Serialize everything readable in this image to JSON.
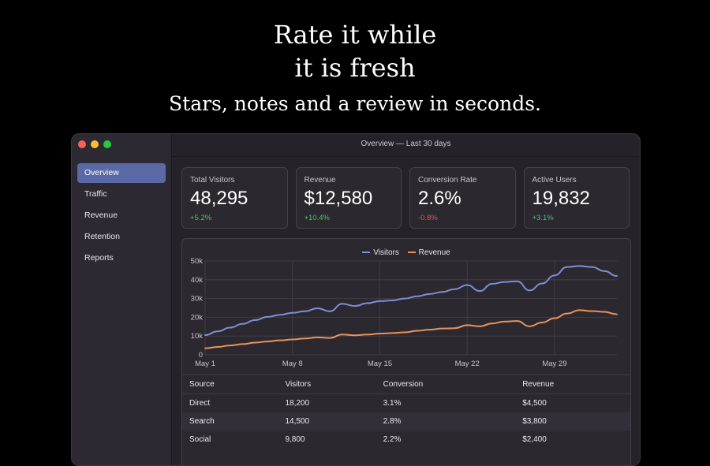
{
  "headline": {
    "line1": "Rate it while",
    "line2": "it is fresh",
    "subtitle": "Stars, notes and a review in seconds."
  },
  "window": {
    "title": "Overview — Last 30 days",
    "traffic_lights": [
      "#ff5f57",
      "#febc2e",
      "#28c840"
    ]
  },
  "sidebar": {
    "items": [
      {
        "label": "Overview",
        "active": true
      },
      {
        "label": "Traffic",
        "active": false
      },
      {
        "label": "Revenue",
        "active": false
      },
      {
        "label": "Retention",
        "active": false
      },
      {
        "label": "Reports",
        "active": false
      }
    ]
  },
  "stats": [
    {
      "label": "Total Visitors",
      "value": "48,295",
      "delta": "+5.2%",
      "trend": "up"
    },
    {
      "label": "Revenue",
      "value": "$12,580",
      "delta": "+10.4%",
      "trend": "up"
    },
    {
      "label": "Conversion Rate",
      "value": "2.6%",
      "delta": "-0.8%",
      "trend": "down"
    },
    {
      "label": "Active Users",
      "value": "19,832",
      "delta": "+3.1%",
      "trend": "up"
    }
  ],
  "colors": {
    "accent": "#5b6aa6",
    "positive": "#4cc36a",
    "negative": "#e0554f",
    "visitors": "#7b8fd4",
    "revenue": "#e8935a"
  },
  "chart_data": {
    "type": "line",
    "x": [
      "May 1",
      "May 2",
      "May 3",
      "May 4",
      "May 5",
      "May 6",
      "May 7",
      "May 8",
      "May 9",
      "May 10",
      "May 11",
      "May 12",
      "May 13",
      "May 14",
      "May 15",
      "May 16",
      "May 17",
      "May 18",
      "May 19",
      "May 20",
      "May 21",
      "May 22",
      "May 23",
      "May 24",
      "May 25",
      "May 26",
      "May 27",
      "May 28",
      "May 29",
      "May 30",
      "May 31",
      "Jun 1",
      "Jun 2",
      "Jun 3"
    ],
    "x_ticks": [
      "May 1",
      "May 8",
      "May 15",
      "May 22",
      "May 29"
    ],
    "y_ticks": [
      "0",
      "10k",
      "20k",
      "30k",
      "40k",
      "50k"
    ],
    "ylim": [
      0,
      50000
    ],
    "grid": true,
    "legend": "top-center",
    "series": [
      {
        "name": "Visitors",
        "values": [
          10500,
          12500,
          14500,
          16500,
          18500,
          20200,
          21300,
          22400,
          23200,
          24800,
          23200,
          27200,
          26000,
          27500,
          28600,
          29000,
          30000,
          31200,
          32400,
          33500,
          35000,
          37200,
          34000,
          37800,
          38800,
          39200,
          34300,
          38000,
          42300,
          46800,
          47300,
          46800,
          44600,
          42000
        ]
      },
      {
        "name": "Revenue",
        "values": [
          3500,
          4200,
          5000,
          5700,
          6500,
          7100,
          7700,
          8200,
          8700,
          9300,
          9000,
          10800,
          10400,
          10800,
          11300,
          11600,
          12000,
          12800,
          13400,
          14000,
          14200,
          15800,
          15200,
          16700,
          17700,
          18000,
          15200,
          17200,
          19500,
          22000,
          23800,
          23300,
          22900,
          21600
        ]
      }
    ]
  },
  "table": {
    "headers": [
      "Source",
      "Visitors",
      "Conversion",
      "Revenue"
    ],
    "rows": [
      [
        "Direct",
        "18,200",
        "3.1%",
        "$4,500"
      ],
      [
        "Search",
        "14,500",
        "2.8%",
        "$3,800"
      ],
      [
        "Social",
        "9,800",
        "2.2%",
        "$2,400"
      ]
    ]
  }
}
